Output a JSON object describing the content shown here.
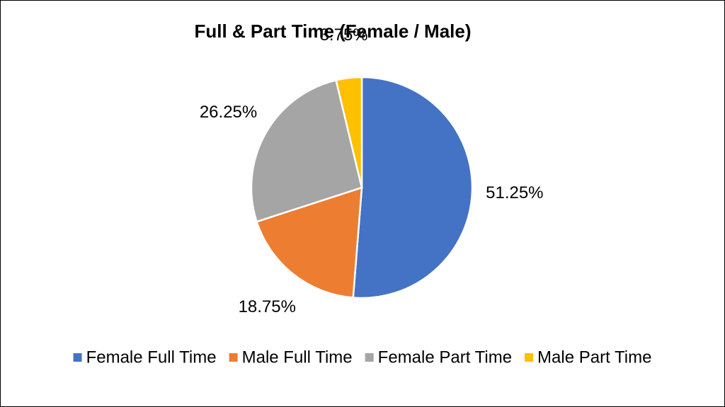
{
  "chart_data": {
    "type": "pie",
    "title": "Full & Part Time (Female / Male)",
    "categories": [
      "Female Full Time",
      "Male Full Time",
      "Female Part Time",
      "Male Part Time"
    ],
    "values": [
      51.25,
      18.75,
      26.25,
      3.75
    ],
    "value_labels": [
      "51.25%",
      "18.75%",
      "26.25%",
      "3.75%"
    ],
    "colors": [
      "#4472c4",
      "#ed7d31",
      "#a5a5a5",
      "#ffc000"
    ],
    "legend": "bottom"
  }
}
